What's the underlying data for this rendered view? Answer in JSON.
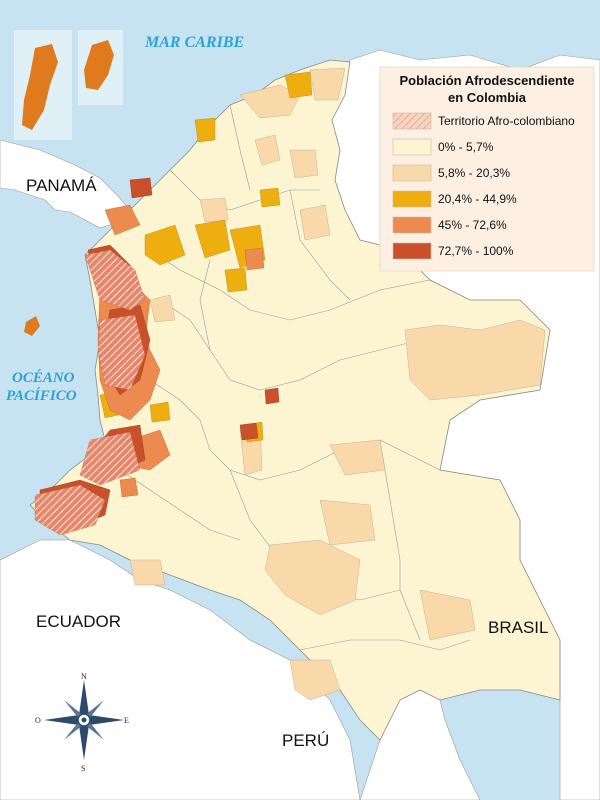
{
  "seas": {
    "caribbean": "MAR CARIBE",
    "pacific_line1": "OCÉANO",
    "pacific_line2": "PACÍFICO"
  },
  "countries": {
    "panama": "PANAMÁ",
    "ecuador": "ECUADOR",
    "brasil": "BRASIL",
    "peru": "PERÚ"
  },
  "compass": {
    "north": "N",
    "south": "S",
    "east": "E",
    "west": "O"
  },
  "legend": {
    "title_line1": "Población Afrodescendiente",
    "title_line2": "en Colombia",
    "items": [
      {
        "label": "Territorio Afro-colombiano",
        "color": "#f4c9b3",
        "pattern": "hatch"
      },
      {
        "label": "0% - 5,7%",
        "color": "#fdf5d2"
      },
      {
        "label": "5,8% - 20,3%",
        "color": "#f9d9aa"
      },
      {
        "label": "20,4% - 44,9%",
        "color": "#eeae0f"
      },
      {
        "label": "45% - 72,6%",
        "color": "#ec8a4f"
      },
      {
        "label": "72,7% - 100%",
        "color": "#c9502a"
      }
    ]
  },
  "colors": {
    "sea": "#c7e3f1",
    "neighbor": "#ffffff",
    "border": "#8a8a8a"
  }
}
